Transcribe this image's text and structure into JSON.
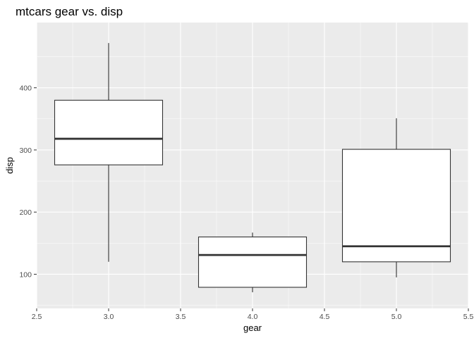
{
  "chart_data": {
    "type": "boxplot",
    "title": "mtcars gear vs. disp",
    "xlabel": "gear",
    "ylabel": "disp",
    "xlim": [
      2.5,
      5.5
    ],
    "ylim": [
      45,
      505
    ],
    "x_ticks": [
      "2.5",
      "3.0",
      "3.5",
      "4.0",
      "4.5",
      "5.0",
      "5.5"
    ],
    "y_ticks": [
      "100",
      "200",
      "300",
      "400"
    ],
    "grid": true,
    "colors": {
      "panel_background": "#ebebeb",
      "grid": "#ffffff",
      "box_fill": "#ffffff",
      "box_stroke": "#333333",
      "tick_text": "#4d4d4d"
    },
    "boxes": [
      {
        "x": 3,
        "min": 120,
        "q1": 276,
        "median": 318,
        "q3": 380,
        "max": 472
      },
      {
        "x": 4,
        "min": 71,
        "q1": 79,
        "median": 131,
        "q3": 160,
        "max": 167
      },
      {
        "x": 5,
        "min": 95,
        "q1": 120,
        "median": 145,
        "q3": 301,
        "max": 351
      }
    ]
  }
}
